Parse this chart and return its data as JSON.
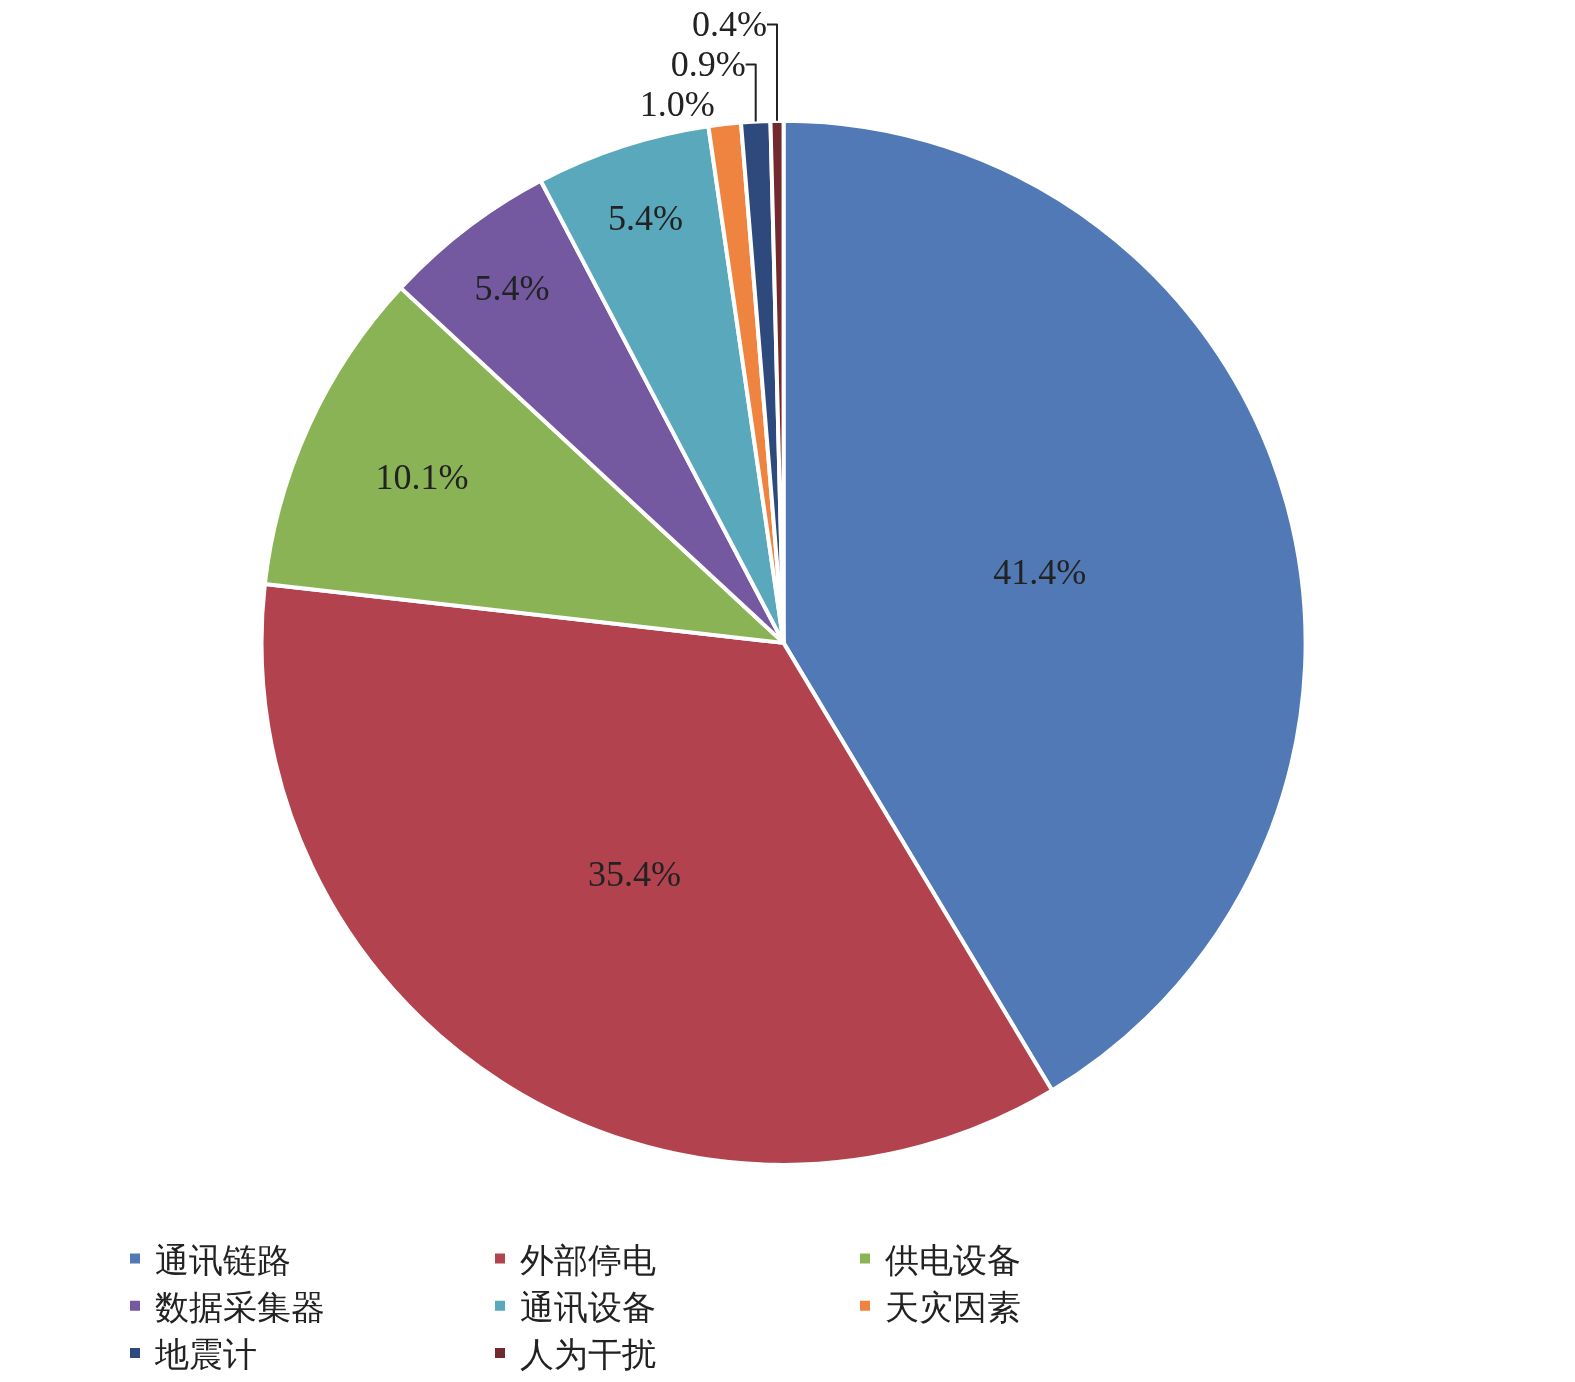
{
  "chart_data": {
    "type": "pie",
    "categories": [
      "通讯链路",
      "外部停电",
      "供电设备",
      "数据采集器",
      "通讯设备",
      "天灾因素",
      "地震计",
      "人为干扰"
    ],
    "values": [
      41.4,
      35.4,
      10.1,
      5.4,
      5.4,
      1.0,
      0.9,
      0.4
    ],
    "value_labels": [
      "41.4%",
      "35.4%",
      "10.1%",
      "5.4%",
      "5.4%",
      "1.0%",
      "0.9%",
      "0.4%"
    ],
    "colors": [
      "#5079b5",
      "#b3424f",
      "#8ab356",
      "#7459a0",
      "#5aa8bb",
      "#ee843f",
      "#2e4a7c",
      "#722a2e"
    ],
    "legend": "bottom"
  }
}
